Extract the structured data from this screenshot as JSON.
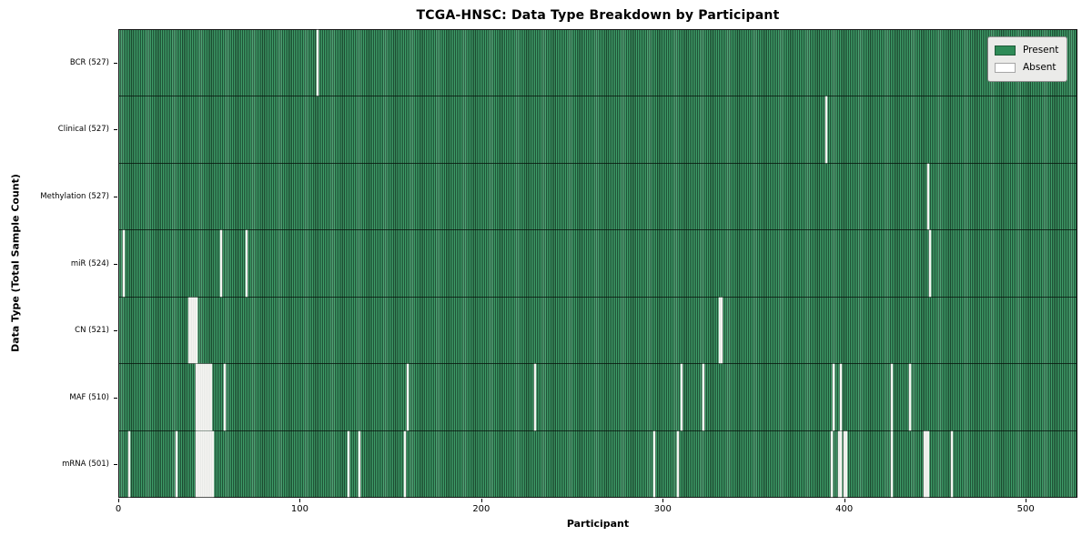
{
  "title": "TCGA-HNSC: Data Type Breakdown by Participant",
  "axes": {
    "x_label": "Participant",
    "y_label": "Data Type (Total Sample Count)",
    "x_ticks": [
      0,
      100,
      200,
      300,
      400,
      500
    ]
  },
  "legend": {
    "items": [
      {
        "label": "Present",
        "color": "#2e8b57"
      },
      {
        "label": "Absent",
        "color": "#ffffff"
      }
    ]
  },
  "colors": {
    "present": "#2e8b57",
    "absent": "#ffffff",
    "bar_stripe_light": "#3f9e69",
    "bar_stripe_dark": "#1f5136",
    "legend_background": "#ebebe9"
  },
  "chart_data": {
    "type": "heatmap",
    "title": "TCGA-HNSC: Data Type Breakdown by Participant",
    "xlabel": "Participant",
    "ylabel": "Data Type (Total Sample Count)",
    "x_range": [
      0,
      528.5
    ],
    "n_participants": 528,
    "legend_entries": [
      "Present",
      "Absent"
    ],
    "legend_position": "upper right",
    "rows": [
      {
        "name": "BCR",
        "label": "BCR (527)",
        "present_count": 527,
        "absent_participants": [
          109
        ]
      },
      {
        "name": "Clinical",
        "label": "Clinical (527)",
        "present_count": 527,
        "absent_participants": [
          390
        ]
      },
      {
        "name": "Methylation",
        "label": "Methylation (527)",
        "present_count": 527,
        "absent_participants": [
          446
        ]
      },
      {
        "name": "miR",
        "label": "miR (524)",
        "present_count": 524,
        "absent_participants": [
          2,
          56,
          70,
          447
        ]
      },
      {
        "name": "CN",
        "label": "CN (521)",
        "present_count": 521,
        "absent_participants": [
          38,
          39,
          40,
          41,
          42,
          331,
          332
        ]
      },
      {
        "name": "MAF",
        "label": "MAF (510)",
        "present_count": 510,
        "absent_participants": [
          42,
          43,
          44,
          45,
          46,
          47,
          48,
          49,
          50,
          58,
          159,
          229,
          310,
          322,
          394,
          398,
          426,
          436
        ]
      },
      {
        "name": "mRNA",
        "label": "mRNA (501)",
        "present_count": 501,
        "absent_participants": [
          5,
          31,
          42,
          43,
          44,
          45,
          46,
          47,
          48,
          49,
          50,
          51,
          126,
          132,
          157,
          295,
          308,
          393,
          397,
          398,
          400,
          401,
          426,
          444,
          445,
          446,
          459
        ]
      }
    ]
  }
}
